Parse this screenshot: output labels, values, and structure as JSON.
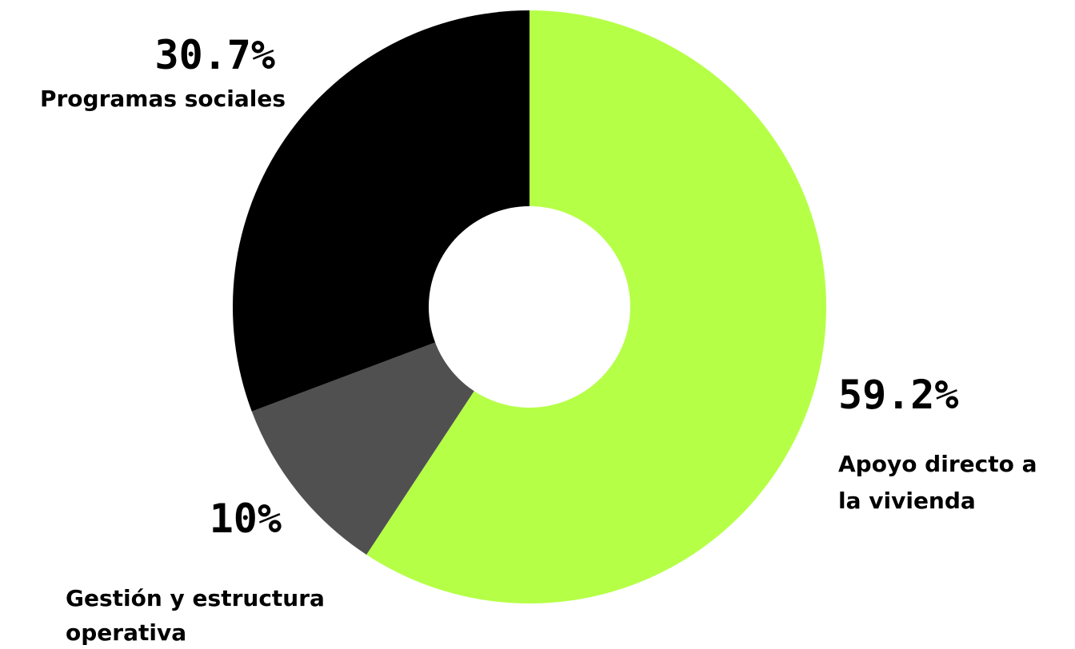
{
  "chart_data": {
    "type": "pie",
    "donut": true,
    "start": "top",
    "direction": "clockwise",
    "slices": [
      {
        "label": [
          "Apoyo directo a",
          "la vivienda"
        ],
        "value": 59.2,
        "value_label": "59.2%",
        "color": "#b5ff47"
      },
      {
        "label": [
          "Gestión y estructura",
          "operativa"
        ],
        "value": 10,
        "value_label": "10%",
        "color": "#505050"
      },
      {
        "label": [
          "Programas sociales"
        ],
        "value": 30.7,
        "value_label": "30.7%",
        "color": "#000000"
      }
    ],
    "background": "#ffffff",
    "legend": "none"
  }
}
